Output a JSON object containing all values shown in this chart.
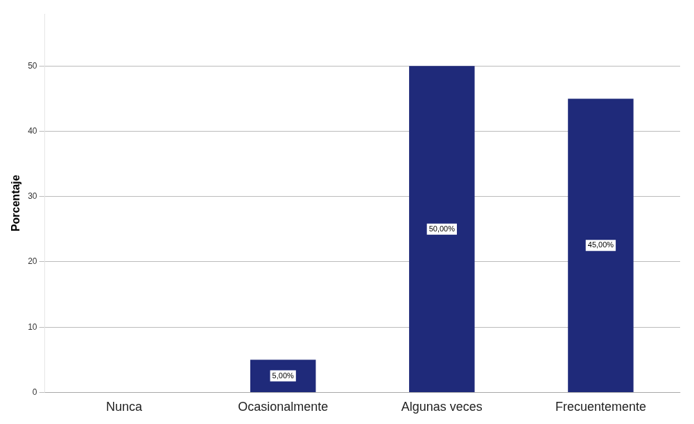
{
  "chart_data": {
    "type": "bar",
    "ylabel": "Porcentaje",
    "categories": [
      "Nunca",
      "Ocasionalmente",
      "Algunas veces",
      "Frecuentemente"
    ],
    "values": [
      0,
      5,
      50,
      45
    ],
    "color": "#1f2a7a",
    "value_labels": [
      null,
      "5,00%",
      "50,00%",
      "45,00%"
    ],
    "ylim": [
      0,
      58
    ],
    "yticks": [
      0,
      10,
      20,
      30,
      40,
      50
    ],
    "grid": "y",
    "legend": false
  }
}
